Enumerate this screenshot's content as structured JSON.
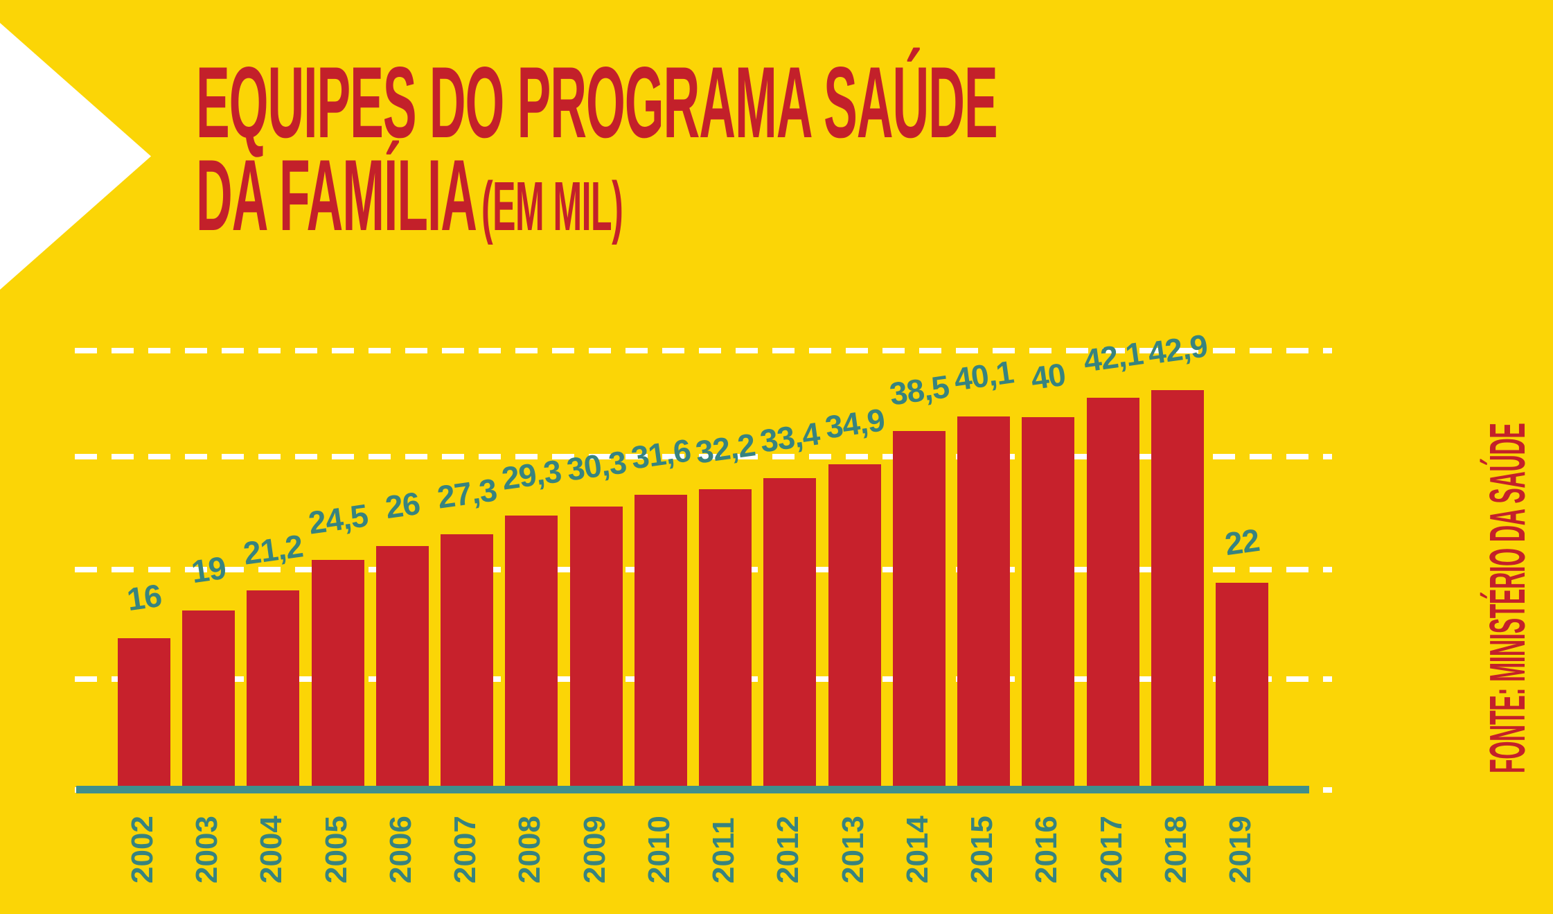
{
  "page": {
    "background_color": "#FBD506",
    "accent_red": "#C3202A",
    "accent_teal": "#37837F",
    "gridline_color": "#FFFFFF"
  },
  "header": {
    "title_line1": "EQUIPES DO PROGRAMA SAÚDE",
    "title_line2": "DA FAMÍLIA",
    "title_unit": "(EM MIL)"
  },
  "source_note": "FONTE: MINISTÉRIO DA SAÚDE",
  "decor": {
    "arrow_icon": "white-right-pointing-triangle"
  },
  "chart_data": {
    "type": "bar",
    "title": "Equipes do Programa Saúde da Família (em mil)",
    "categories": [
      "2002",
      "2003",
      "2004",
      "2005",
      "2006",
      "2007",
      "2008",
      "2009",
      "2010",
      "2011",
      "2012",
      "2013",
      "2014",
      "2015",
      "2016",
      "2017",
      "2018",
      "2019"
    ],
    "values": [
      16,
      19,
      21.2,
      24.5,
      26,
      27.3,
      29.3,
      30.3,
      31.6,
      32.2,
      33.4,
      34.9,
      38.5,
      40.1,
      40,
      42.1,
      42.9,
      22
    ],
    "value_labels": [
      "16",
      "19",
      "21,2",
      "24,5",
      "26",
      "27,3",
      "29,3",
      "30,3",
      "31,6",
      "32,2",
      "33,4",
      "34,9",
      "38,5",
      "40,1",
      "40",
      "42,1",
      "42,9",
      "22"
    ],
    "xlabel": "",
    "ylabel": "",
    "ylim": [
      0,
      45
    ],
    "bar_color": "#C7212C",
    "label_color": "#37837F",
    "axis_line_color": "#3F8F8D",
    "grid": "horizontal-dashed-white",
    "legend_position": "none",
    "x_tick_rotation": -90,
    "value_label_rotation": -8
  }
}
